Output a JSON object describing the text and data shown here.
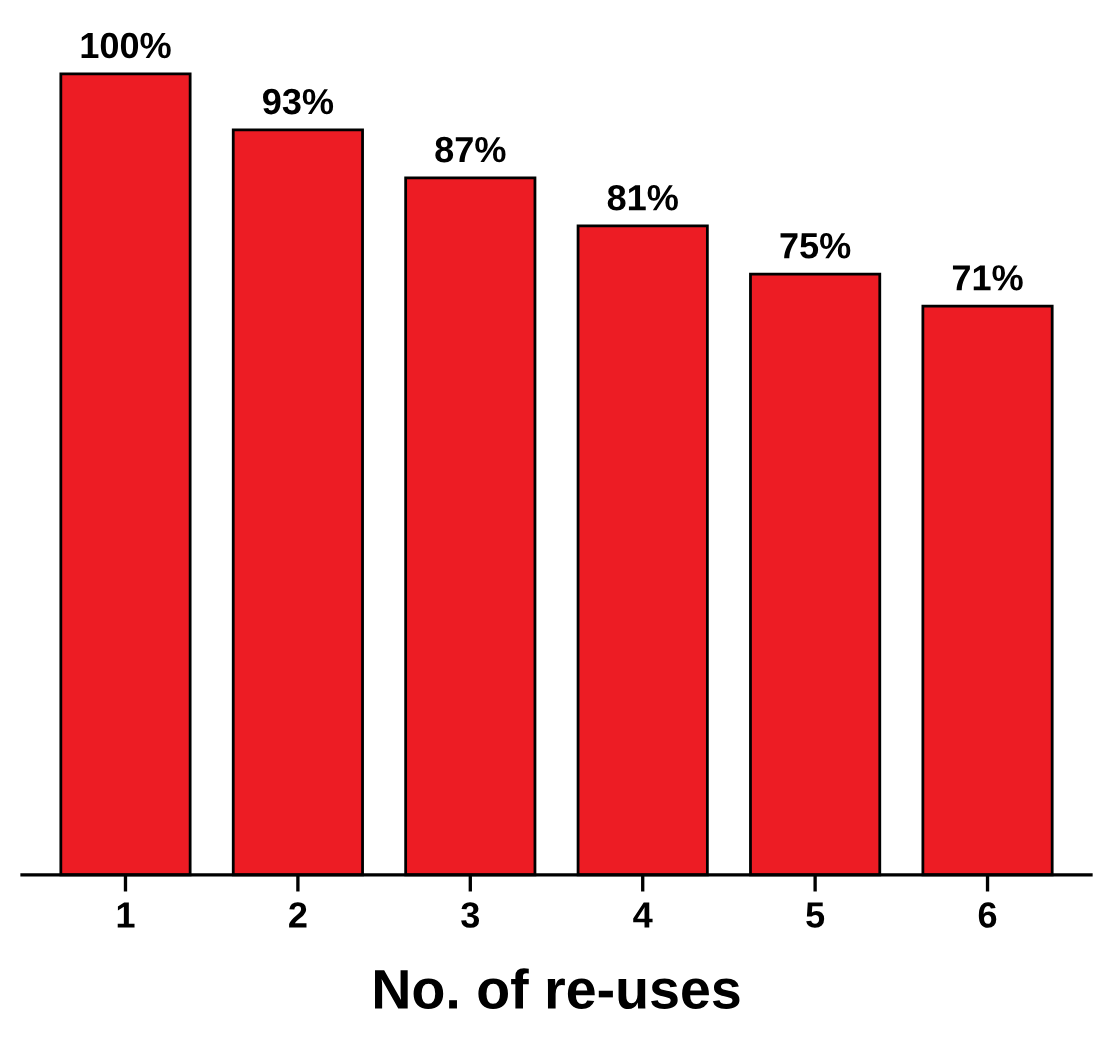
{
  "chart_data": {
    "type": "bar",
    "xlabel": "No. of re-uses",
    "categories": [
      "1",
      "2",
      "3",
      "4",
      "5",
      "6"
    ],
    "values": [
      100,
      93,
      87,
      81,
      75,
      71
    ],
    "value_labels": [
      "100%",
      "93%",
      "87%",
      "81%",
      "75%",
      "71%"
    ],
    "color": "#ed1c24",
    "tick_labels": "x",
    "grid": false
  }
}
